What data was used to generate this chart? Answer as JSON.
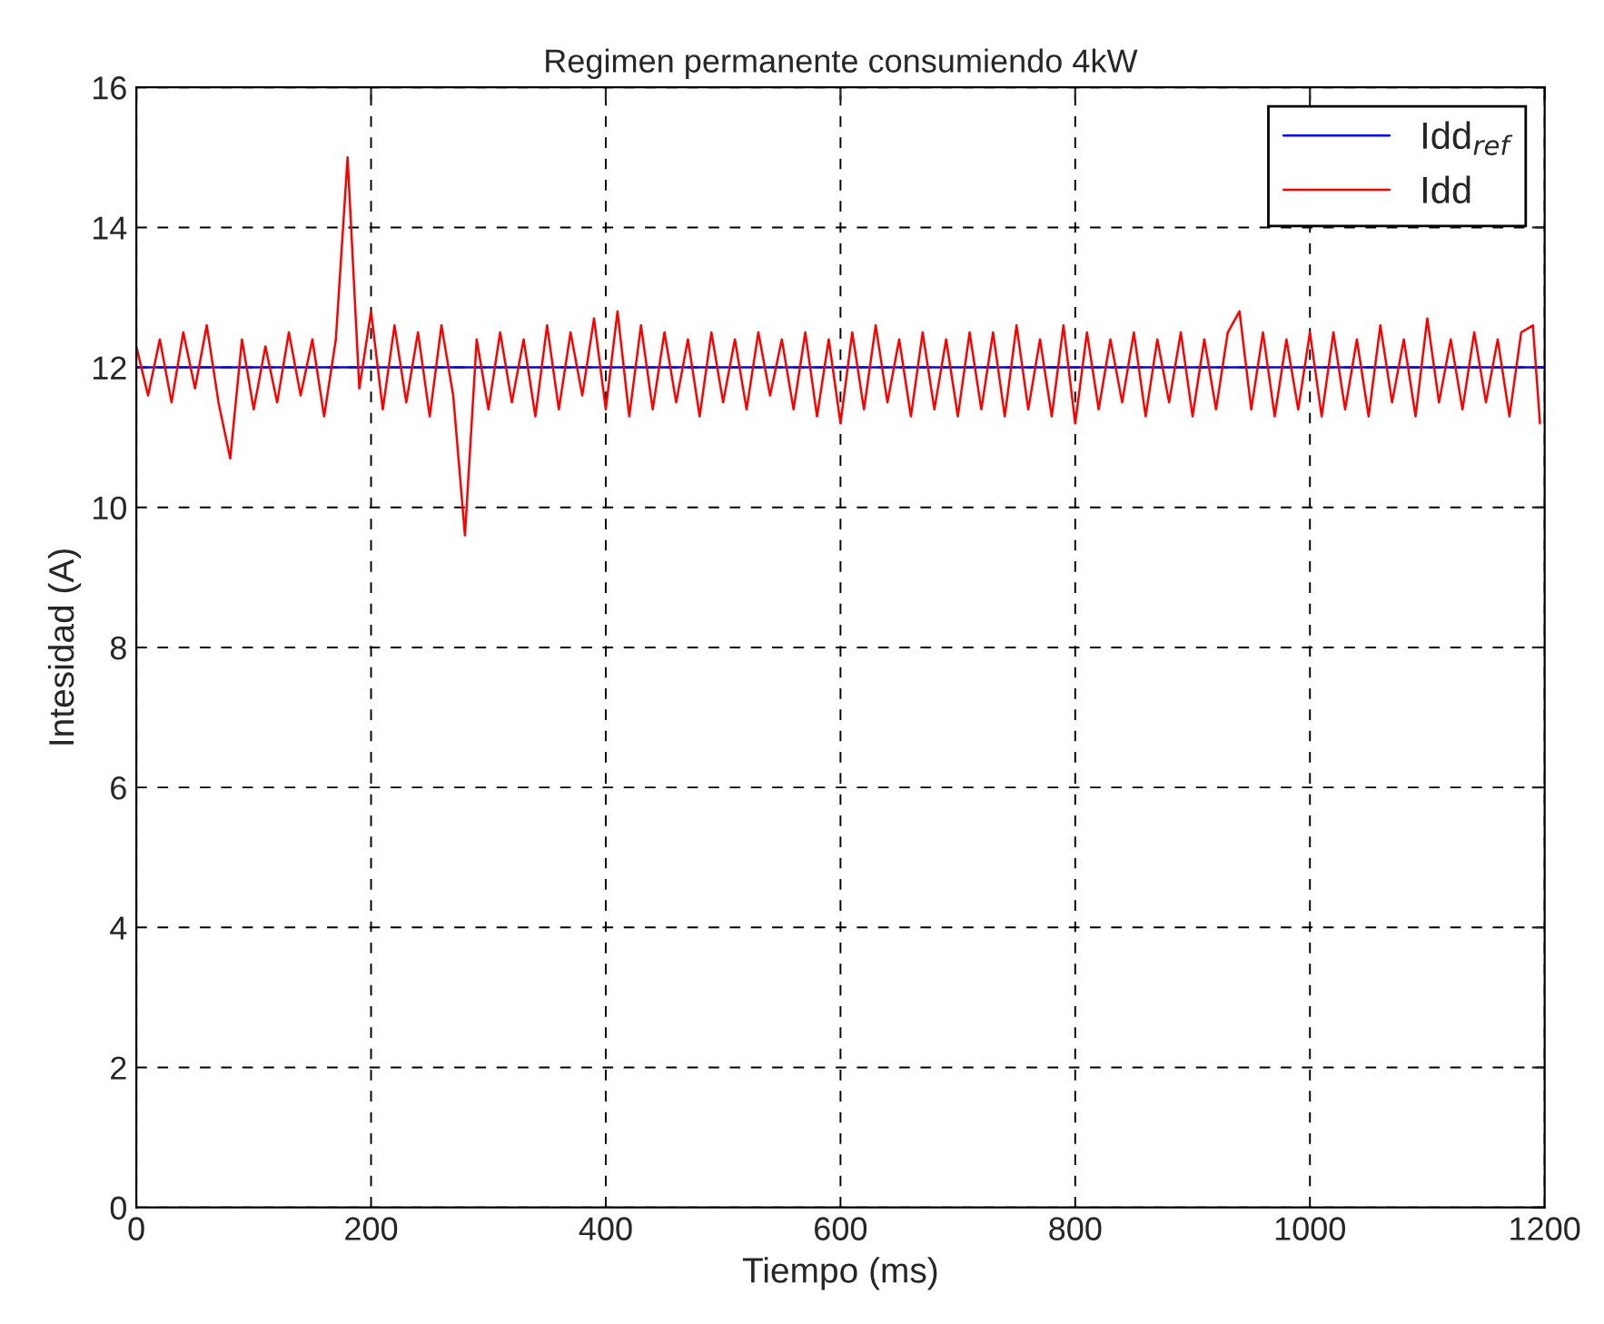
{
  "chart_data": {
    "type": "line",
    "title": "Regimen permanente consumiendo 4kW",
    "xlabel": "Tiempo (ms)",
    "ylabel": "Intesidad (A)",
    "xlim": [
      0,
      1200
    ],
    "xticks": [
      0,
      200,
      400,
      600,
      800,
      1000,
      1200
    ],
    "ylim": [
      0,
      16
    ],
    "yticks": [
      0,
      2,
      4,
      6,
      8,
      10,
      12,
      14,
      16
    ],
    "grid": true,
    "legend": "top right",
    "line_style": "solid",
    "series": [
      {
        "name": "Idd$_{ref}$",
        "color": "#0000ff",
        "x": [
          0,
          1200
        ],
        "values": [
          12,
          12
        ]
      },
      {
        "name": "Idd",
        "color": "#ff0000",
        "x": [
          0,
          10,
          20,
          30,
          40,
          50,
          60,
          70,
          80,
          90,
          100,
          110,
          120,
          130,
          140,
          150,
          160,
          170,
          180,
          190,
          200,
          210,
          220,
          230,
          240,
          250,
          260,
          270,
          280,
          290,
          300,
          310,
          320,
          330,
          340,
          350,
          360,
          370,
          380,
          390,
          400,
          410,
          420,
          430,
          440,
          450,
          460,
          470,
          480,
          490,
          500,
          510,
          520,
          530,
          540,
          550,
          560,
          570,
          580,
          590,
          600,
          610,
          620,
          630,
          640,
          650,
          660,
          670,
          680,
          690,
          700,
          710,
          720,
          730,
          740,
          750,
          760,
          770,
          780,
          790,
          800,
          810,
          820,
          830,
          840,
          850,
          860,
          870,
          880,
          890,
          900,
          910,
          920,
          930,
          940,
          950,
          960,
          970,
          980,
          990,
          1000,
          1010,
          1020,
          1030,
          1040,
          1050,
          1060,
          1070,
          1080,
          1090,
          1100,
          1110,
          1120,
          1130,
          1140,
          1150,
          1160,
          1170,
          1180,
          1190,
          1196
        ],
        "values": [
          12.3,
          11.6,
          12.4,
          11.5,
          12.5,
          11.7,
          12.6,
          11.5,
          10.7,
          12.4,
          11.4,
          12.3,
          11.5,
          12.5,
          11.6,
          12.4,
          11.3,
          12.4,
          15.0,
          11.7,
          12.8,
          11.4,
          12.6,
          11.5,
          12.5,
          11.3,
          12.6,
          11.6,
          9.6,
          12.4,
          11.4,
          12.5,
          11.5,
          12.4,
          11.3,
          12.6,
          11.4,
          12.5,
          11.6,
          12.7,
          11.4,
          12.8,
          11.3,
          12.6,
          11.4,
          12.5,
          11.5,
          12.4,
          11.3,
          12.5,
          11.5,
          12.4,
          11.4,
          12.5,
          11.6,
          12.4,
          11.4,
          12.5,
          11.3,
          12.4,
          11.2,
          12.5,
          11.4,
          12.6,
          11.5,
          12.4,
          11.3,
          12.5,
          11.4,
          12.4,
          11.3,
          12.5,
          11.4,
          12.5,
          11.3,
          12.6,
          11.4,
          12.4,
          11.3,
          12.6,
          11.2,
          12.5,
          11.4,
          12.4,
          11.5,
          12.5,
          11.3,
          12.4,
          11.5,
          12.5,
          11.3,
          12.4,
          11.4,
          12.5,
          12.8,
          11.4,
          12.5,
          11.3,
          12.4,
          11.4,
          12.5,
          11.3,
          12.5,
          11.4,
          12.4,
          11.3,
          12.6,
          11.5,
          12.4,
          11.3,
          12.7,
          11.5,
          12.4,
          11.4,
          12.5,
          11.5,
          12.4,
          11.3,
          12.5,
          12.6,
          11.2
        ]
      }
    ]
  }
}
